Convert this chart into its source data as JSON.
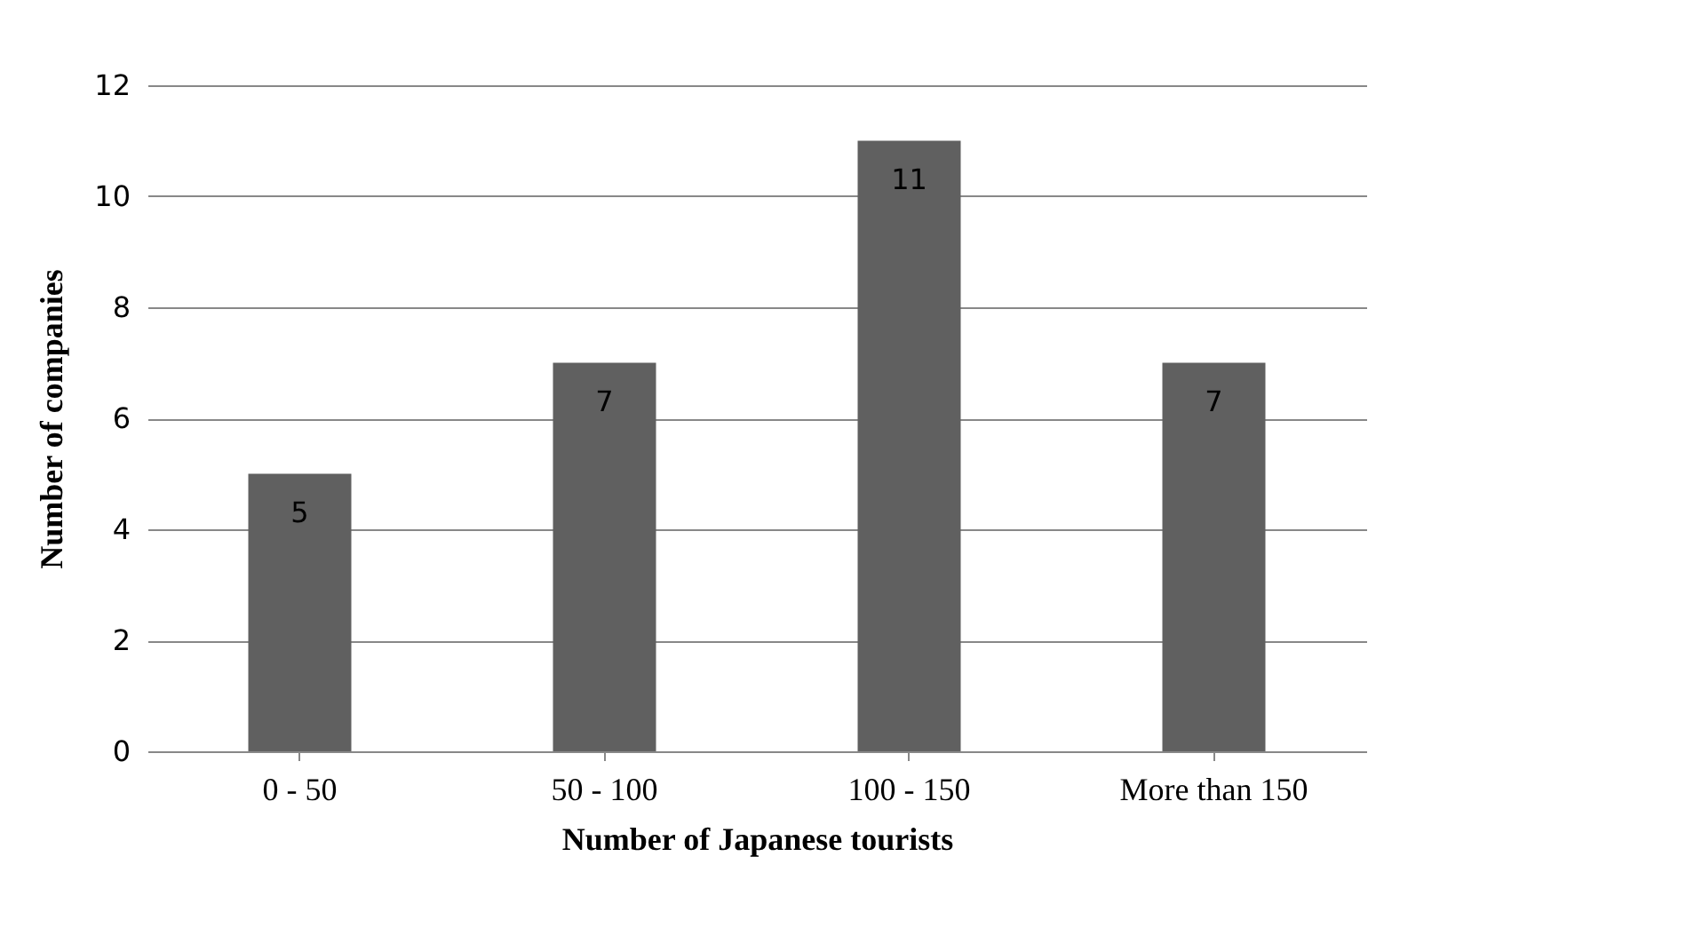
{
  "chart_data": {
    "type": "bar",
    "categories": [
      "0 - 50",
      "50 - 100",
      "100 - 150",
      "More than 150"
    ],
    "values": [
      5,
      7,
      11,
      7
    ],
    "color": "#606060",
    "xlabel": "Number of Japanese tourists",
    "ylabel": "Number of companies",
    "ylim": [
      0,
      12
    ],
    "yticks": [
      0,
      2,
      4,
      6,
      8,
      10,
      12
    ],
    "grid": "y",
    "data_labels": true
  }
}
